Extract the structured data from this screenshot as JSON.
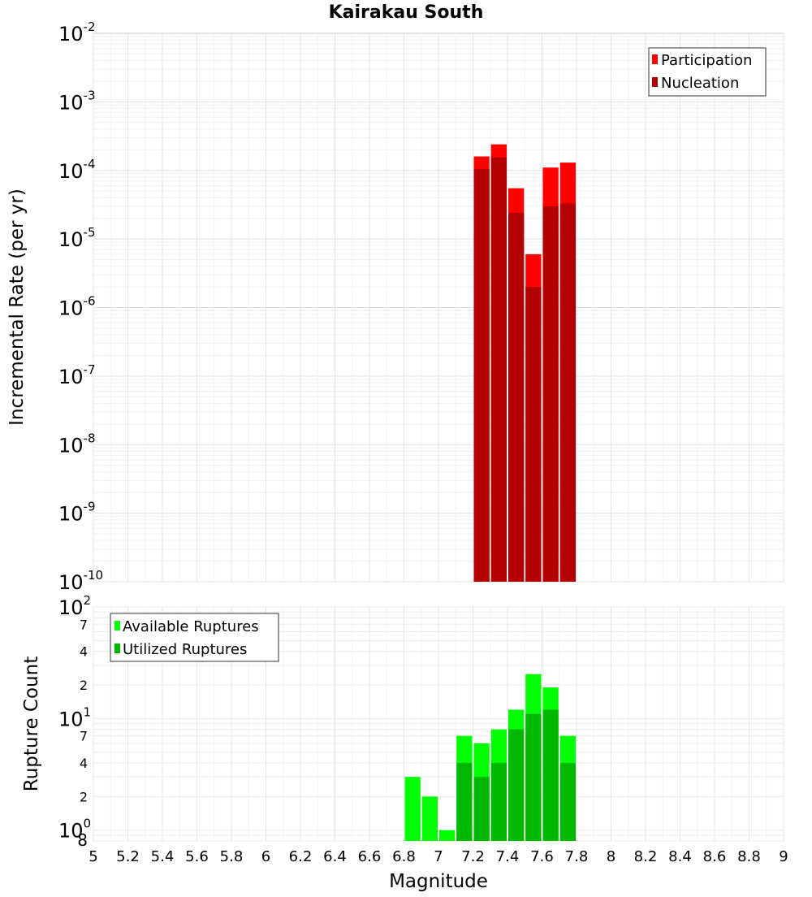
{
  "chart_data": [
    {
      "type": "bar",
      "title": "Kairakau South",
      "xlabel": "",
      "ylabel": "Incremental Rate (per yr)",
      "yscale": "log",
      "ylim": [
        1e-10,
        0.01
      ],
      "xlim": [
        5,
        9
      ],
      "grid": true,
      "legend_position": "top-right",
      "x": [
        7.25,
        7.35,
        7.45,
        7.55,
        7.65,
        7.75
      ],
      "bar_width": 0.1,
      "series": [
        {
          "name": "Participation",
          "color": "#ff0000",
          "values": [
            0.00016,
            0.00024,
            5.5e-05,
            6e-06,
            0.00011,
            0.00013
          ]
        },
        {
          "name": "Nucleation",
          "color": "#b30000",
          "values": [
            0.000105,
            0.000155,
            2.4e-05,
            2e-06,
            3e-05,
            3.3e-05
          ]
        }
      ],
      "y_ticks": [
        {
          "base": "10",
          "exp": "-2"
        },
        {
          "base": "10",
          "exp": "-3"
        },
        {
          "base": "10",
          "exp": "-4"
        },
        {
          "base": "10",
          "exp": "-5"
        },
        {
          "base": "10",
          "exp": "-6"
        },
        {
          "base": "10",
          "exp": "-7"
        },
        {
          "base": "10",
          "exp": "-8"
        },
        {
          "base": "10",
          "exp": "-9"
        },
        {
          "base": "10",
          "exp": "-10"
        }
      ]
    },
    {
      "type": "bar",
      "title": "",
      "xlabel": "Magnitude",
      "ylabel": "Rupture Count",
      "yscale": "log",
      "ylim": [
        0.8,
        100
      ],
      "xlim": [
        5,
        9
      ],
      "grid": true,
      "legend_position": "top-left",
      "x": [
        6.85,
        6.95,
        7.05,
        7.15,
        7.25,
        7.35,
        7.45,
        7.55,
        7.65,
        7.75
      ],
      "bar_width": 0.1,
      "series": [
        {
          "name": "Available Ruptures",
          "color": "#00ff00",
          "values": [
            3,
            2,
            1,
            7,
            6,
            8,
            12,
            25,
            19,
            7
          ]
        },
        {
          "name": "Utilized Ruptures",
          "color": "#00b800",
          "values": [
            0,
            0,
            0,
            4,
            3,
            4,
            8,
            11,
            12,
            4
          ]
        }
      ],
      "y_ticks": [
        {
          "value": 100,
          "main": "10",
          "sup": "2"
        },
        {
          "value": 70,
          "minor": "7"
        },
        {
          "value": 40,
          "minor": "4"
        },
        {
          "value": 20,
          "minor": "2"
        },
        {
          "value": 10,
          "main": "10",
          "sup": "1"
        },
        {
          "value": 7,
          "minor": "7"
        },
        {
          "value": 4,
          "minor": "4"
        },
        {
          "value": 2,
          "minor": "2"
        },
        {
          "value": 1,
          "main": "10",
          "sup": "0"
        },
        {
          "value": 0.8,
          "minor": "8"
        }
      ],
      "x_ticks": [
        "5",
        "5.2",
        "5.4",
        "5.6",
        "5.8",
        "6",
        "6.2",
        "6.4",
        "6.6",
        "6.8",
        "7",
        "7.2",
        "7.4",
        "7.6",
        "7.8",
        "8",
        "8.2",
        "8.4",
        "8.6",
        "8.8",
        "9"
      ]
    }
  ]
}
